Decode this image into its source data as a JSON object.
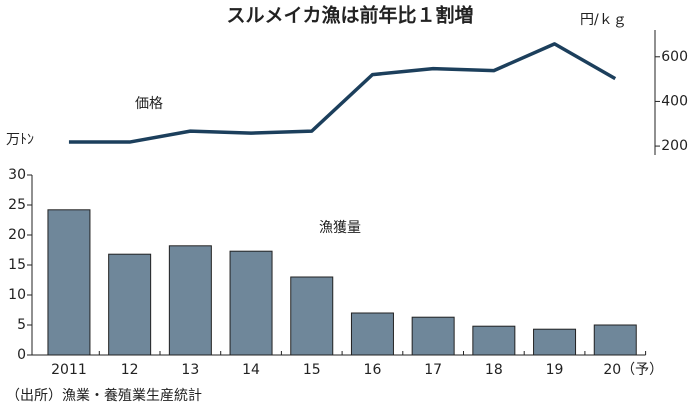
{
  "chart_data": [
    {
      "type": "line",
      "title": "スルメイカ漁は前年比１割増",
      "y_label": "円/ｋｇ",
      "y_axis_side": "right",
      "series": [
        {
          "name": "価格",
          "color": "#1c3f5c",
          "values": [
            218,
            218,
            267,
            258,
            267,
            520,
            547,
            538,
            658,
            502
          ]
        }
      ],
      "ylim": [
        160,
        720
      ],
      "yticks": [
        200,
        400,
        600
      ]
    },
    {
      "type": "bar",
      "y_label": "万ﾄﾝ",
      "y_axis_side": "left",
      "categories": [
        "2011",
        "12",
        "13",
        "14",
        "15",
        "16",
        "17",
        "18",
        "19",
        "20（予）"
      ],
      "series": [
        {
          "name": "漁獲量",
          "color": "#6f879a",
          "values": [
            24.2,
            16.8,
            18.2,
            17.3,
            13,
            7,
            6.3,
            4.8,
            4.3,
            5
          ]
        }
      ],
      "ylim": [
        0,
        30
      ],
      "yticks": [
        0,
        5,
        10,
        15,
        20,
        25,
        30
      ],
      "source": "（出所）漁業・養殖業生産統計"
    }
  ]
}
